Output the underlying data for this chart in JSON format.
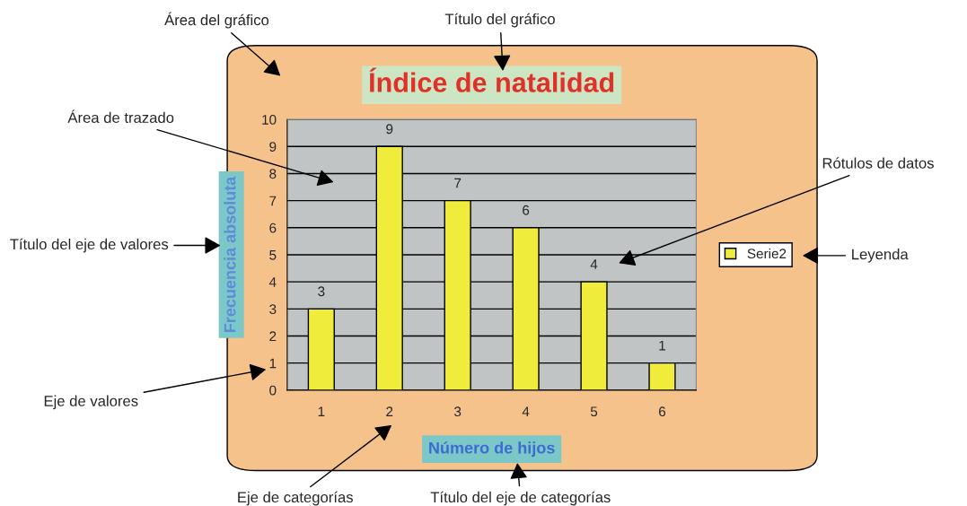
{
  "chart_data": {
    "type": "bar",
    "title": "Índice de natalidad",
    "xlabel": "Número de hijos",
    "ylabel": "Frecuencia absoluta",
    "categories": [
      "1",
      "2",
      "3",
      "4",
      "5",
      "6"
    ],
    "series": [
      {
        "name": "Serie2",
        "color": "#f0ec3c",
        "values": [
          3,
          9,
          7,
          6,
          4,
          1
        ]
      }
    ],
    "ylim": [
      0,
      10
    ],
    "yticks": [
      0,
      1,
      2,
      3,
      4,
      5,
      6,
      7,
      8,
      9,
      10
    ],
    "grid": "y",
    "legend": "right",
    "data_labels": true,
    "annotations": [
      "Área del gráfico",
      "Título del gráfico",
      "Área de trazado",
      "Rótulos de datos",
      "Título del eje de valores",
      "Leyenda",
      "Eje de valores",
      "Eje de categorías",
      "Título del eje de categorías"
    ]
  }
}
